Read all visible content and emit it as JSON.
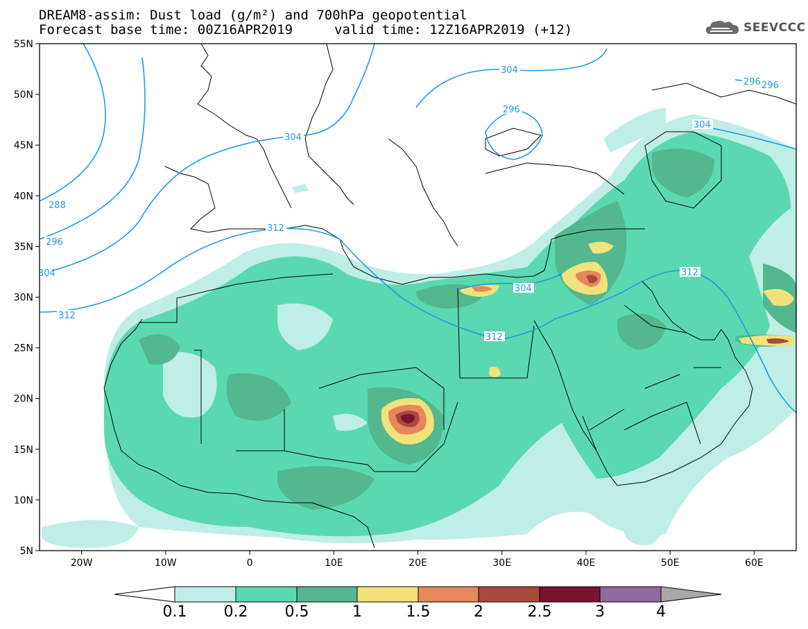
{
  "header": {
    "title_line1": "DREAM8-assim: Dust load (g/m²) and 700hPa geopotential",
    "title_line2": "Forecast base time: 00Z16APR2019",
    "valid_time": "valid time: 12Z16APR2019 (+12)",
    "logo_text": "SEEVCCC",
    "logo_icon": "cloud-icon"
  },
  "map": {
    "lon_range": [
      -25,
      65
    ],
    "lat_range": [
      5,
      55
    ],
    "lat_ticks": [
      "55N",
      "50N",
      "45N",
      "40N",
      "35N",
      "30N",
      "25N",
      "20N",
      "15N",
      "10N",
      "5N"
    ],
    "lon_ticks": [
      "20W",
      "10W",
      "0",
      "10E",
      "20E",
      "30E",
      "40E",
      "50E",
      "60E"
    ],
    "contour_labels": [
      "288",
      "296",
      "304",
      "312",
      "296",
      "304",
      "304",
      "312",
      "312",
      "304",
      "296",
      "312",
      "296",
      "304"
    ]
  },
  "colorbar": {
    "labels": [
      "0.1",
      "0.2",
      "0.5",
      "1",
      "1.5",
      "2",
      "2.5",
      "3",
      "4"
    ],
    "colors": [
      "#ffffff",
      "#bfeee6",
      "#5ad9b0",
      "#53b88f",
      "#f1e27a",
      "#e8865e",
      "#a94a3d",
      "#7b1230",
      "#8e6c9e",
      "#a8a8a8"
    ]
  }
}
